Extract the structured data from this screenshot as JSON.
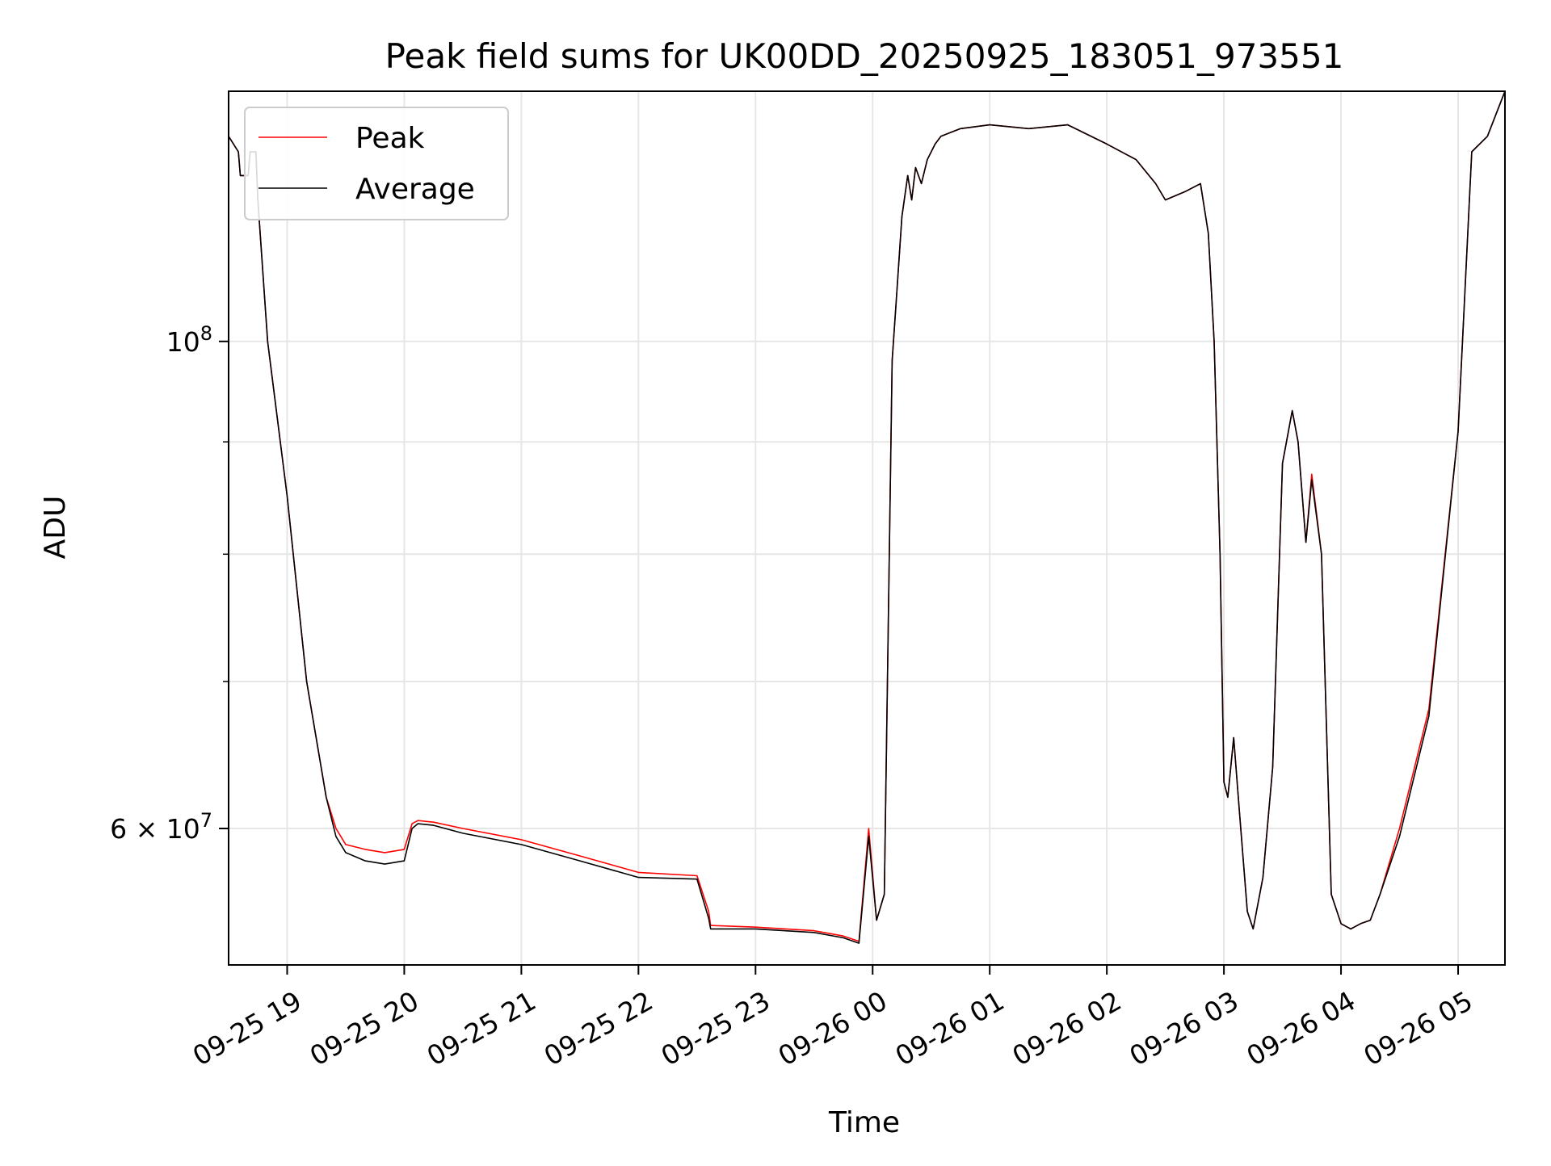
{
  "chart_data": {
    "type": "line",
    "title": "Peak field sums for UK00DD_20250925_183051_973551",
    "xlabel": "Time",
    "ylabel": "ADU",
    "y_scale": "log",
    "ylim": [
      52000000,
      130000000
    ],
    "xlim": [
      "2025-09-25 18:30",
      "2025-09-26 05:24"
    ],
    "grid": true,
    "legend_position": "upper left",
    "x_ticks": [
      {
        "value": "2025-09-25 19:00",
        "label": "09-25 19"
      },
      {
        "value": "2025-09-25 20:00",
        "label": "09-25 20"
      },
      {
        "value": "2025-09-25 21:00",
        "label": "09-25 21"
      },
      {
        "value": "2025-09-25 22:00",
        "label": "09-25 22"
      },
      {
        "value": "2025-09-25 23:00",
        "label": "09-25 23"
      },
      {
        "value": "2025-09-26 00:00",
        "label": "09-26 00"
      },
      {
        "value": "2025-09-26 01:00",
        "label": "09-26 01"
      },
      {
        "value": "2025-09-26 02:00",
        "label": "09-26 02"
      },
      {
        "value": "2025-09-26 03:00",
        "label": "09-26 03"
      },
      {
        "value": "2025-09-26 04:00",
        "label": "09-26 04"
      },
      {
        "value": "2025-09-26 05:00",
        "label": "09-26 05"
      }
    ],
    "y_ticks_major": [
      {
        "value": 60000000,
        "base": "6 × 10",
        "exp": "7"
      },
      {
        "value": 100000000,
        "base": "10",
        "exp": "8"
      }
    ],
    "y_ticks_minor": [
      70000000,
      80000000,
      90000000
    ],
    "series": [
      {
        "name": "Peak",
        "color": "#ff0000",
        "x": [
          "2025-09-25 18:30",
          "2025-09-25 18:35",
          "2025-09-25 18:36",
          "2025-09-25 18:40",
          "2025-09-25 18:41",
          "2025-09-25 18:44",
          "2025-09-25 18:45",
          "2025-09-25 18:50",
          "2025-09-25 19:00",
          "2025-09-25 19:10",
          "2025-09-25 19:20",
          "2025-09-25 19:25",
          "2025-09-25 19:30",
          "2025-09-25 19:40",
          "2025-09-25 19:50",
          "2025-09-25 20:00",
          "2025-09-25 20:04",
          "2025-09-25 20:07",
          "2025-09-25 20:15",
          "2025-09-25 20:30",
          "2025-09-25 21:00",
          "2025-09-25 21:30",
          "2025-09-25 22:00",
          "2025-09-25 22:30",
          "2025-09-25 22:36",
          "2025-09-25 22:37",
          "2025-09-25 23:00",
          "2025-09-25 23:30",
          "2025-09-25 23:45",
          "2025-09-25 23:53",
          "2025-09-25 23:58",
          "2025-09-26 00:02",
          "2025-09-26 00:06",
          "2025-09-26 00:10",
          "2025-09-26 00:12",
          "2025-09-26 00:15",
          "2025-09-26 00:18",
          "2025-09-26 00:20",
          "2025-09-26 00:22",
          "2025-09-26 00:25",
          "2025-09-26 00:28",
          "2025-09-26 00:32",
          "2025-09-26 00:35",
          "2025-09-26 00:40",
          "2025-09-26 00:45",
          "2025-09-26 01:00",
          "2025-09-26 01:20",
          "2025-09-26 01:40",
          "2025-09-26 02:00",
          "2025-09-26 02:15",
          "2025-09-26 02:25",
          "2025-09-26 02:30",
          "2025-09-26 02:40",
          "2025-09-26 02:48",
          "2025-09-26 02:52",
          "2025-09-26 02:55",
          "2025-09-26 02:58",
          "2025-09-26 03:00",
          "2025-09-26 03:02",
          "2025-09-26 03:05",
          "2025-09-26 03:08",
          "2025-09-26 03:12",
          "2025-09-26 03:15",
          "2025-09-26 03:20",
          "2025-09-26 03:25",
          "2025-09-26 03:30",
          "2025-09-26 03:35",
          "2025-09-26 03:38",
          "2025-09-26 03:42",
          "2025-09-26 03:45",
          "2025-09-26 03:50",
          "2025-09-26 03:55",
          "2025-09-26 04:00",
          "2025-09-26 04:05",
          "2025-09-26 04:10",
          "2025-09-26 04:15",
          "2025-09-26 04:20",
          "2025-09-26 04:30",
          "2025-09-26 04:45",
          "2025-09-26 05:00",
          "2025-09-26 05:07",
          "2025-09-26 05:15",
          "2025-09-26 05:24"
        ],
        "values": [
          124000000,
          122000000,
          119000000,
          119000000,
          122000000,
          122000000,
          116000000,
          100000000,
          85000000,
          70000000,
          62000000,
          60000000,
          59000000,
          58700000,
          58500000,
          58700000,
          60300000,
          60500000,
          60400000,
          60000000,
          59300000,
          58300000,
          57300000,
          57100000,
          55000000,
          54200000,
          54100000,
          53900000,
          53600000,
          53300000,
          60000000,
          54500000,
          56000000,
          98000000,
          104000000,
          114000000,
          119000000,
          116000000,
          120000000,
          118000000,
          121000000,
          123000000,
          124000000,
          124500000,
          125000000,
          125500000,
          125000000,
          125500000,
          123000000,
          121000000,
          118000000,
          116000000,
          117000000,
          118000000,
          112000000,
          100000000,
          80000000,
          63000000,
          62000000,
          66000000,
          61000000,
          55000000,
          54000000,
          57000000,
          64000000,
          88000000,
          93000000,
          90000000,
          81000000,
          87000000,
          80000000,
          56000000,
          54300000,
          54000000,
          54300000,
          54500000,
          56000000,
          60000000,
          68000000,
          91000000,
          122000000,
          124000000,
          130000000
        ]
      },
      {
        "name": "Average",
        "color": "#000000",
        "x": [
          "2025-09-25 18:30",
          "2025-09-25 18:35",
          "2025-09-25 18:36",
          "2025-09-25 18:40",
          "2025-09-25 18:41",
          "2025-09-25 18:44",
          "2025-09-25 18:45",
          "2025-09-25 18:50",
          "2025-09-25 19:00",
          "2025-09-25 19:10",
          "2025-09-25 19:20",
          "2025-09-25 19:25",
          "2025-09-25 19:30",
          "2025-09-25 19:40",
          "2025-09-25 19:50",
          "2025-09-25 20:00",
          "2025-09-25 20:04",
          "2025-09-25 20:07",
          "2025-09-25 20:15",
          "2025-09-25 20:30",
          "2025-09-25 21:00",
          "2025-09-25 21:30",
          "2025-09-25 22:00",
          "2025-09-25 22:30",
          "2025-09-25 22:36",
          "2025-09-25 22:37",
          "2025-09-25 23:00",
          "2025-09-25 23:30",
          "2025-09-25 23:45",
          "2025-09-25 23:53",
          "2025-09-25 23:58",
          "2025-09-26 00:02",
          "2025-09-26 00:06",
          "2025-09-26 00:10",
          "2025-09-26 00:12",
          "2025-09-26 00:15",
          "2025-09-26 00:18",
          "2025-09-26 00:20",
          "2025-09-26 00:22",
          "2025-09-26 00:25",
          "2025-09-26 00:28",
          "2025-09-26 00:32",
          "2025-09-26 00:35",
          "2025-09-26 00:40",
          "2025-09-26 00:45",
          "2025-09-26 01:00",
          "2025-09-26 01:20",
          "2025-09-26 01:40",
          "2025-09-26 02:00",
          "2025-09-26 02:15",
          "2025-09-26 02:25",
          "2025-09-26 02:30",
          "2025-09-26 02:40",
          "2025-09-26 02:48",
          "2025-09-26 02:52",
          "2025-09-26 02:55",
          "2025-09-26 02:58",
          "2025-09-26 03:00",
          "2025-09-26 03:02",
          "2025-09-26 03:05",
          "2025-09-26 03:08",
          "2025-09-26 03:12",
          "2025-09-26 03:15",
          "2025-09-26 03:20",
          "2025-09-26 03:25",
          "2025-09-26 03:30",
          "2025-09-26 03:35",
          "2025-09-26 03:38",
          "2025-09-26 03:42",
          "2025-09-26 03:45",
          "2025-09-26 03:50",
          "2025-09-26 03:55",
          "2025-09-26 04:00",
          "2025-09-26 04:05",
          "2025-09-26 04:10",
          "2025-09-26 04:15",
          "2025-09-26 04:20",
          "2025-09-26 04:30",
          "2025-09-26 04:45",
          "2025-09-26 05:00",
          "2025-09-26 05:07",
          "2025-09-26 05:15",
          "2025-09-26 05:24"
        ],
        "values": [
          124000000,
          122000000,
          119000000,
          119000000,
          122000000,
          122000000,
          116000000,
          100000000,
          85000000,
          70000000,
          62000000,
          59500000,
          58500000,
          58000000,
          57800000,
          58000000,
          60000000,
          60300000,
          60200000,
          59700000,
          59000000,
          58000000,
          57000000,
          56900000,
          54600000,
          54000000,
          54000000,
          53800000,
          53500000,
          53200000,
          59500000,
          54500000,
          56000000,
          98000000,
          104000000,
          114000000,
          119000000,
          116000000,
          120000000,
          118000000,
          121000000,
          123000000,
          124000000,
          124500000,
          125000000,
          125500000,
          125000000,
          125500000,
          123000000,
          121000000,
          118000000,
          116000000,
          117000000,
          118000000,
          112000000,
          100000000,
          80000000,
          63000000,
          62000000,
          66000000,
          61000000,
          55000000,
          54000000,
          57000000,
          64000000,
          88000000,
          93000000,
          90000000,
          81000000,
          86500000,
          80000000,
          56000000,
          54300000,
          54000000,
          54300000,
          54500000,
          56000000,
          59500000,
          67500000,
          91000000,
          122000000,
          124000000,
          130000000
        ]
      }
    ]
  }
}
